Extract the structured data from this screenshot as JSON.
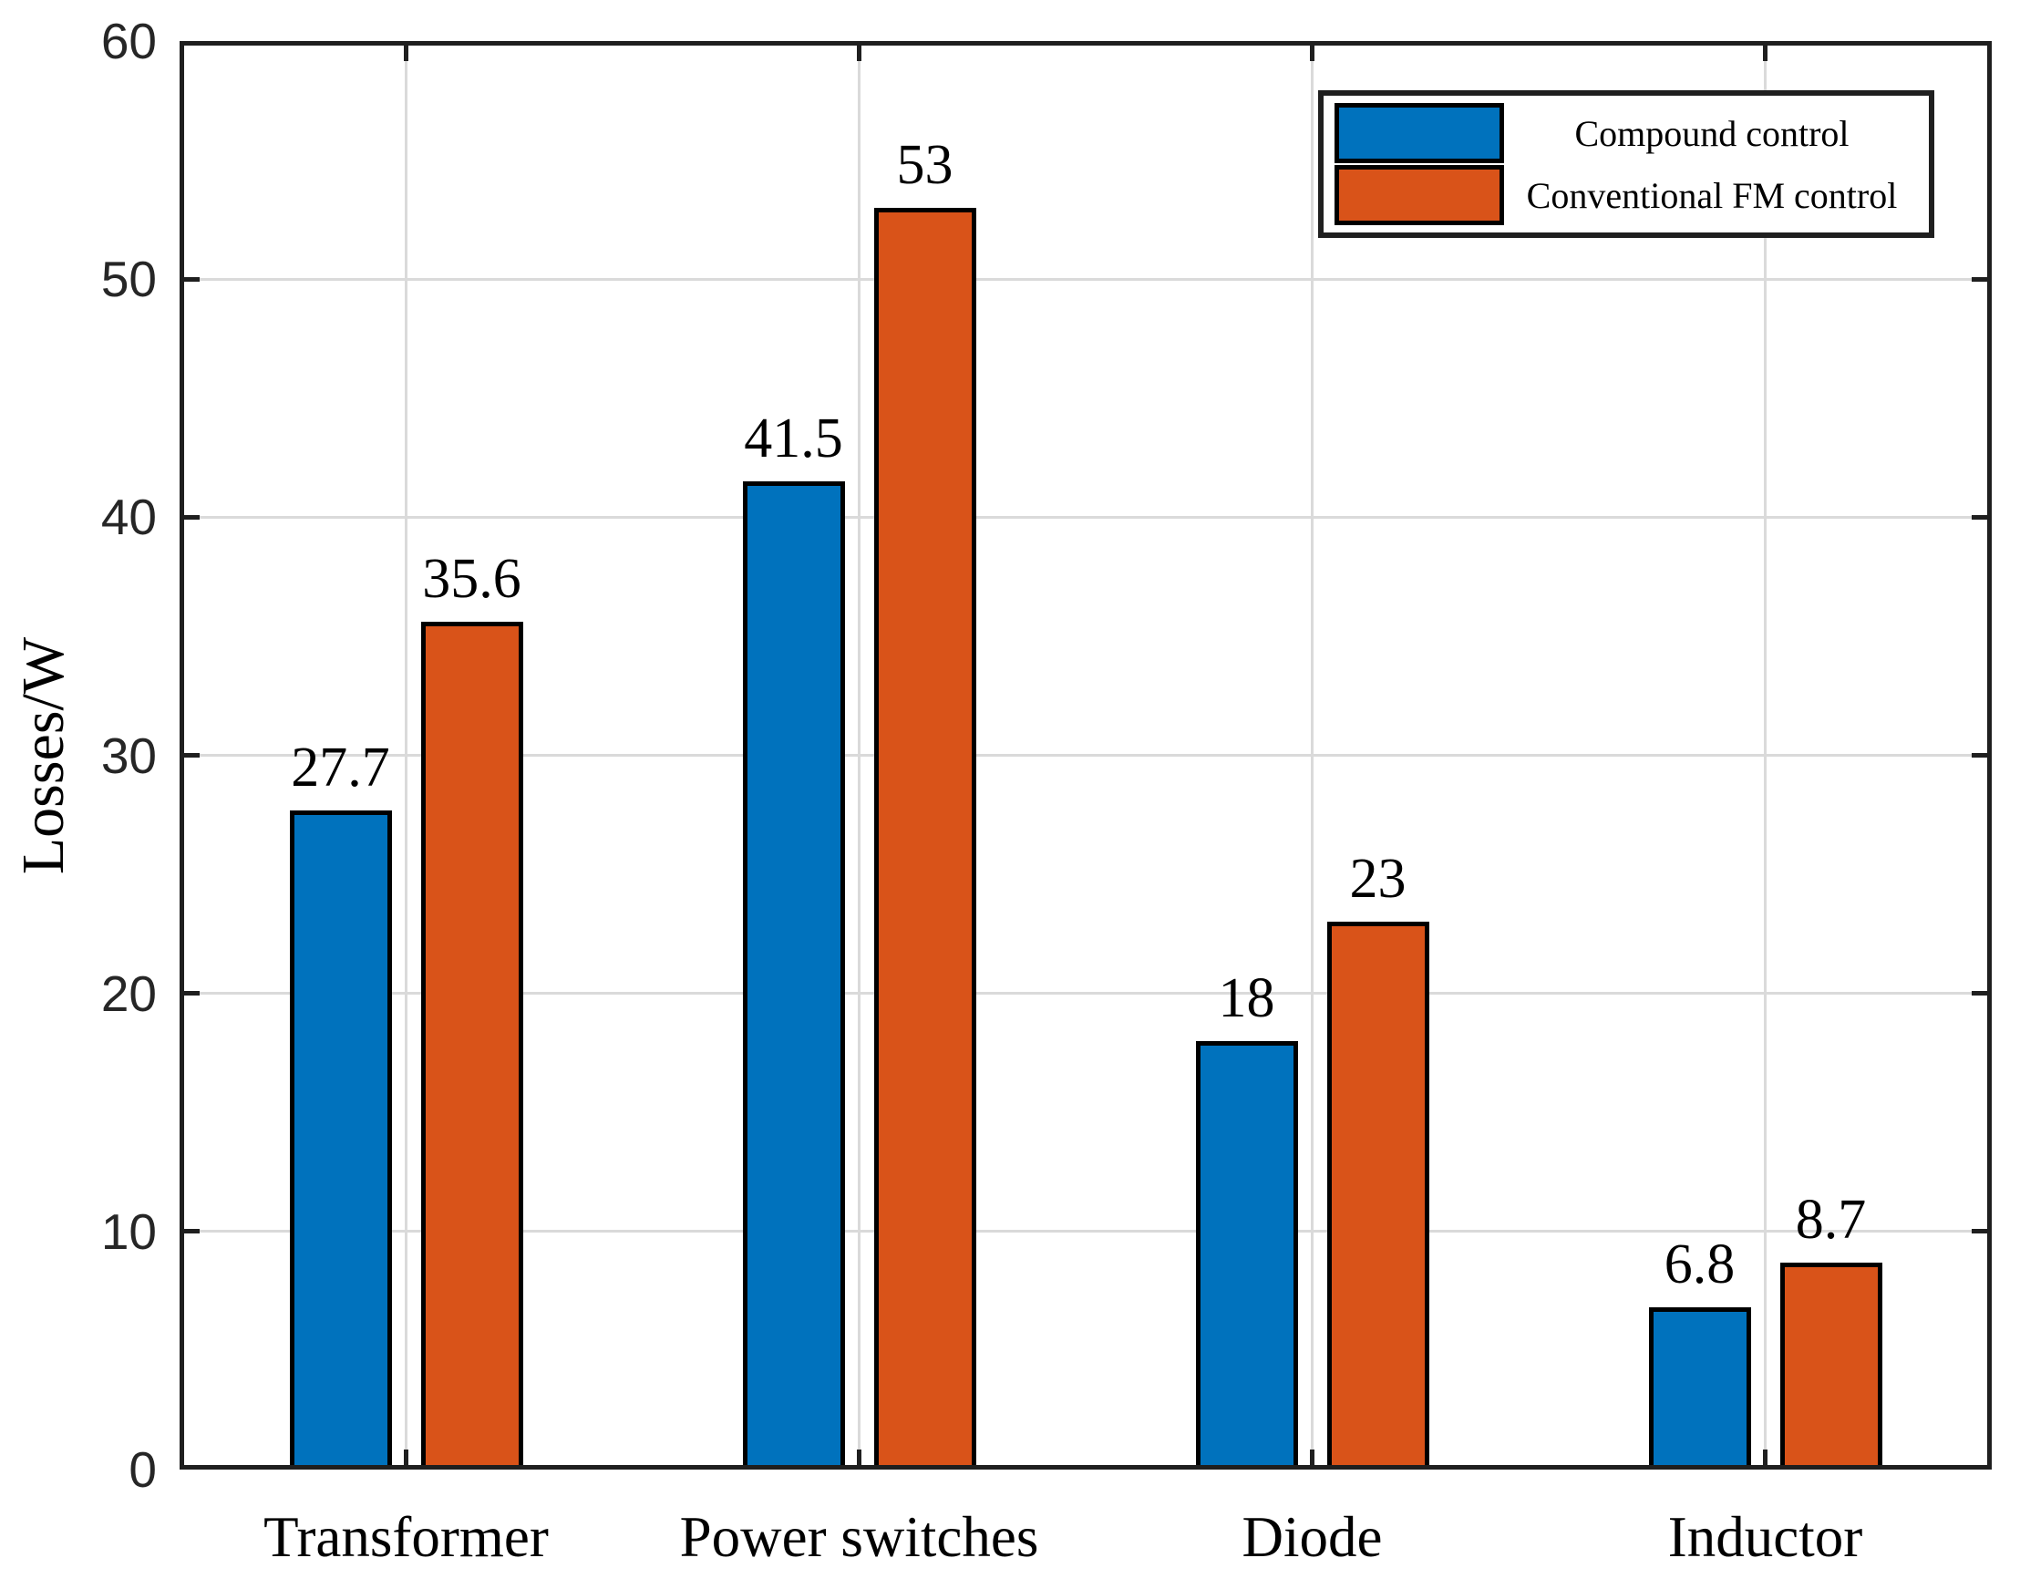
{
  "figure": {
    "background": "#ffffff",
    "colors": {
      "axis": "#1f1f1f",
      "grid": "#dadada",
      "bar_edge": "#000000",
      "tick_label": "#262626"
    }
  },
  "chart_data": {
    "type": "bar",
    "title": "",
    "xlabel": "",
    "ylabel": "Losses/W",
    "categories": [
      "Transformer",
      "Power switches",
      "Diode",
      "Inductor"
    ],
    "series": [
      {
        "name": "Compound control",
        "color": "#0072BD",
        "values": [
          27.7,
          41.5,
          18,
          6.8
        ],
        "labels": [
          "27.7",
          "41.5",
          "18",
          "6.8"
        ]
      },
      {
        "name": "Conventional FM control",
        "color": "#D95319",
        "values": [
          35.6,
          53,
          23,
          8.7
        ],
        "labels": [
          "35.6",
          "53",
          "23",
          "8.7"
        ]
      }
    ],
    "ylim": [
      0,
      60
    ],
    "yticks": [
      0,
      10,
      20,
      30,
      40,
      50,
      60
    ],
    "grid": true,
    "legend_position": "top-right"
  }
}
